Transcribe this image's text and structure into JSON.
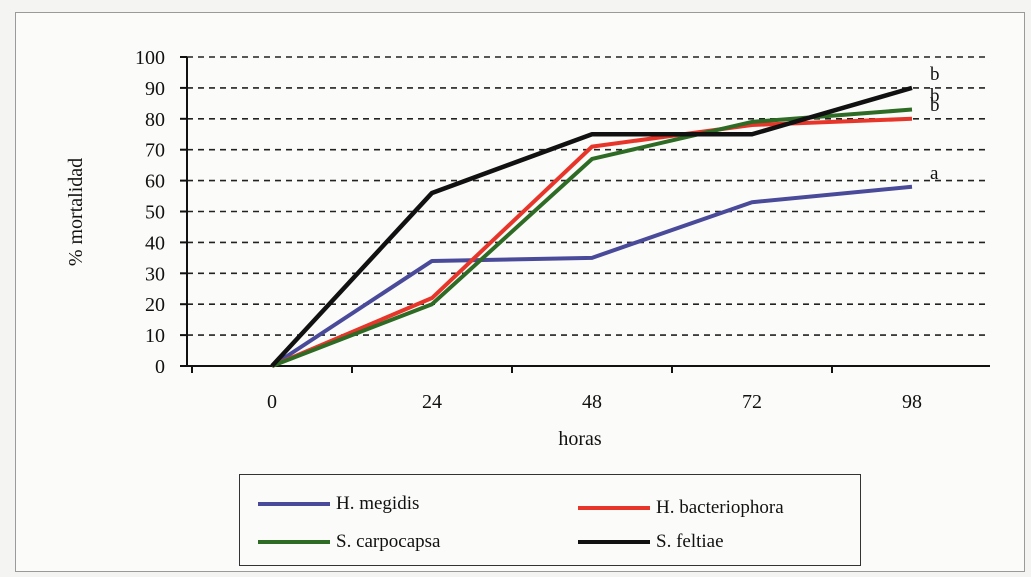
{
  "chart_data": {
    "type": "line",
    "xlabel": "horas",
    "ylabel": "% mortalidad",
    "categories": [
      "0",
      "24",
      "48",
      "72",
      "98"
    ],
    "ylim": [
      0,
      100
    ],
    "yticks": [
      "0",
      "10",
      "20",
      "30",
      "40",
      "50",
      "60",
      "70",
      "80",
      "90",
      "100"
    ],
    "grid": "horizontal dashed",
    "legend_position": "bottom",
    "series": [
      {
        "name": "H. megidis",
        "color": "#4a4a9a",
        "values": [
          0,
          34,
          35,
          53,
          58
        ],
        "sig": "a"
      },
      {
        "name": "H. bacteriophora",
        "color": "#e8352a",
        "values": [
          0,
          22,
          71,
          78,
          80
        ],
        "sig": "b"
      },
      {
        "name": "S. carpocapsa",
        "color": "#2e6b24",
        "values": [
          0,
          20,
          67,
          79,
          83
        ],
        "sig": "b"
      },
      {
        "name": "S. feltiae",
        "color": "#111111",
        "values": [
          0,
          56,
          75,
          75,
          90
        ],
        "sig": "b"
      }
    ]
  }
}
